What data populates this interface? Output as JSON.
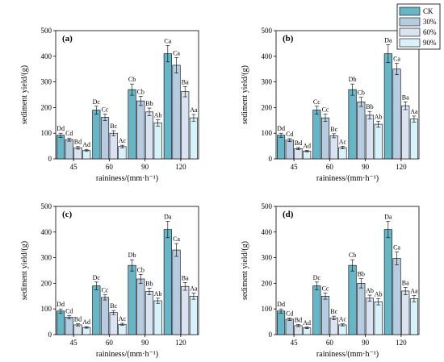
{
  "series_colors": [
    "#67b6c8",
    "#b5cce1",
    "#d9e3f1",
    "#d8f2fb"
  ],
  "legend": {
    "entries": [
      "CK",
      "30%",
      "60%",
      "90%"
    ]
  },
  "chart_data": [
    {
      "type": "bar",
      "panel_label": "(a)",
      "xlabel": "raininess/(mm·h⁻¹)",
      "ylabel": "sediment yield/(g)",
      "ylim": [
        0,
        500
      ],
      "yticks": [
        0,
        100,
        200,
        300,
        400,
        500
      ],
      "categories": [
        "45",
        "60",
        "90",
        "120"
      ],
      "series": [
        {
          "name": "CK",
          "values": [
            92,
            190,
            270,
            410
          ],
          "errors": [
            8,
            15,
            22,
            32
          ],
          "letters": [
            "Dd",
            "Dc",
            "Cb",
            "Ca"
          ]
        },
        {
          "name": "30%",
          "values": [
            75,
            162,
            226,
            365
          ],
          "errors": [
            6,
            12,
            18,
            30
          ],
          "letters": [
            "Cd",
            "Cc",
            "Cb",
            "Ca"
          ]
        },
        {
          "name": "60%",
          "values": [
            43,
            100,
            183,
            262
          ],
          "errors": [
            5,
            10,
            15,
            20
          ],
          "letters": [
            "Bd",
            "Bc",
            "Bb",
            "Ba"
          ]
        },
        {
          "name": "90%",
          "values": [
            33,
            48,
            140,
            160
          ],
          "errors": [
            4,
            5,
            12,
            13
          ],
          "letters": [
            "Ad",
            "Ac",
            "Ab",
            "Aa"
          ]
        }
      ]
    },
    {
      "type": "bar",
      "panel_label": "(b)",
      "xlabel": "raininess/(mm·h⁻¹)",
      "ylabel": "sediment yield/(g)",
      "ylim": [
        0,
        500
      ],
      "yticks": [
        0,
        100,
        200,
        300,
        400,
        500
      ],
      "categories": [
        "45",
        "60",
        "90",
        "120"
      ],
      "series": [
        {
          "name": "CK",
          "values": [
            92,
            190,
            270,
            410
          ],
          "errors": [
            8,
            15,
            22,
            35
          ],
          "letters": [
            "Dd",
            "Cc",
            "Db",
            "Da"
          ]
        },
        {
          "name": "30%",
          "values": [
            73,
            160,
            222,
            350
          ],
          "errors": [
            6,
            14,
            18,
            22
          ],
          "letters": [
            "Cd",
            "Cc",
            "Cb",
            "Ca"
          ]
        },
        {
          "name": "60%",
          "values": [
            40,
            90,
            170,
            207
          ],
          "errors": [
            4,
            8,
            15,
            15
          ],
          "letters": [
            "Bd",
            "Bc",
            "Bb",
            "Ba"
          ]
        },
        {
          "name": "90%",
          "values": [
            30,
            44,
            135,
            155
          ],
          "errors": [
            3,
            5,
            12,
            12
          ],
          "letters": [
            "Ad",
            "Ac",
            "Ab",
            "Aa"
          ]
        }
      ]
    },
    {
      "type": "bar",
      "panel_label": "(c)",
      "xlabel": "raininess/(mm·h⁻¹)",
      "ylabel": "sediment yield/(g)",
      "ylim": [
        0,
        500
      ],
      "yticks": [
        0,
        100,
        200,
        300,
        400,
        500
      ],
      "categories": [
        "45",
        "60",
        "90",
        "120"
      ],
      "series": [
        {
          "name": "CK",
          "values": [
            92,
            190,
            270,
            410
          ],
          "errors": [
            8,
            15,
            22,
            32
          ],
          "letters": [
            "Dd",
            "Dc",
            "Db",
            "Da"
          ]
        },
        {
          "name": "30%",
          "values": [
            68,
            145,
            217,
            330
          ],
          "errors": [
            6,
            10,
            18,
            25
          ],
          "letters": [
            "Cd",
            "Cc",
            "Cb",
            "Ca"
          ]
        },
        {
          "name": "60%",
          "values": [
            38,
            86,
            168,
            188
          ],
          "errors": [
            4,
            8,
            13,
            15
          ],
          "letters": [
            "Bd",
            "Bc",
            "Bb",
            "Ba"
          ]
        },
        {
          "name": "90%",
          "values": [
            28,
            40,
            132,
            150
          ],
          "errors": [
            3,
            4,
            10,
            12
          ],
          "letters": [
            "Ad",
            "Ac",
            "Ab",
            "Aa"
          ]
        }
      ]
    },
    {
      "type": "bar",
      "panel_label": "(d)",
      "xlabel": "raininess/(mm·h⁻¹)",
      "ylabel": "sediment yield/(g)",
      "ylim": [
        0,
        500
      ],
      "yticks": [
        0,
        100,
        200,
        300,
        400,
        500
      ],
      "categories": [
        "45",
        "60",
        "90",
        "120"
      ],
      "series": [
        {
          "name": "CK",
          "values": [
            92,
            190,
            270,
            410
          ],
          "errors": [
            8,
            15,
            22,
            32
          ],
          "letters": [
            "Dd",
            "Dc",
            "Cb",
            "Da"
          ]
        },
        {
          "name": "30%",
          "values": [
            60,
            150,
            200,
            297
          ],
          "errors": [
            5,
            12,
            18,
            25
          ],
          "letters": [
            "Cd",
            "Cc",
            "Bb",
            "Ca"
          ]
        },
        {
          "name": "60%",
          "values": [
            35,
            65,
            142,
            170
          ],
          "errors": [
            4,
            7,
            12,
            14
          ],
          "letters": [
            "Bd",
            "Bc",
            "Ab",
            "Ba"
          ]
        },
        {
          "name": "90%",
          "values": [
            26,
            38,
            128,
            140
          ],
          "errors": [
            3,
            4,
            12,
            12
          ],
          "letters": [
            "Ad",
            "Ac",
            "Ab",
            "Aa"
          ]
        }
      ]
    }
  ]
}
